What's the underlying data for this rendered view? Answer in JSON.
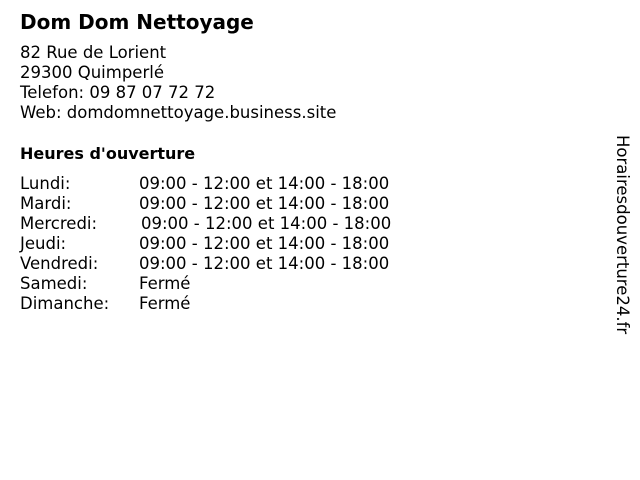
{
  "business": {
    "name": "Dom Dom Nettoyage",
    "address_line1": "82 Rue de Lorient",
    "address_line2": "29300 Quimperlé",
    "phone": "Telefon: 09 87 07 72 72",
    "web": "Web: domdomnettoyage.business.site"
  },
  "hours": {
    "heading": "Heures d'ouverture",
    "rows": [
      {
        "day": "Lundi:",
        "time": "09:00 - 12:00 et 14:00 - 18:00"
      },
      {
        "day": "Mardi:",
        "time": "09:00 - 12:00 et 14:00 - 18:00"
      },
      {
        "day": "Mercredi:",
        "time": "09:00 - 12:00 et 14:00 - 18:00"
      },
      {
        "day": "Jeudi:",
        "time": "09:00 - 12:00 et 14:00 - 18:00"
      },
      {
        "day": "Vendredi:",
        "time": "09:00 - 12:00 et 14:00 - 18:00"
      },
      {
        "day": "Samedi:",
        "time": "Fermé"
      },
      {
        "day": "Dimanche:",
        "time": "Fermé"
      }
    ]
  },
  "watermark": "Horairesdouverture24.fr"
}
